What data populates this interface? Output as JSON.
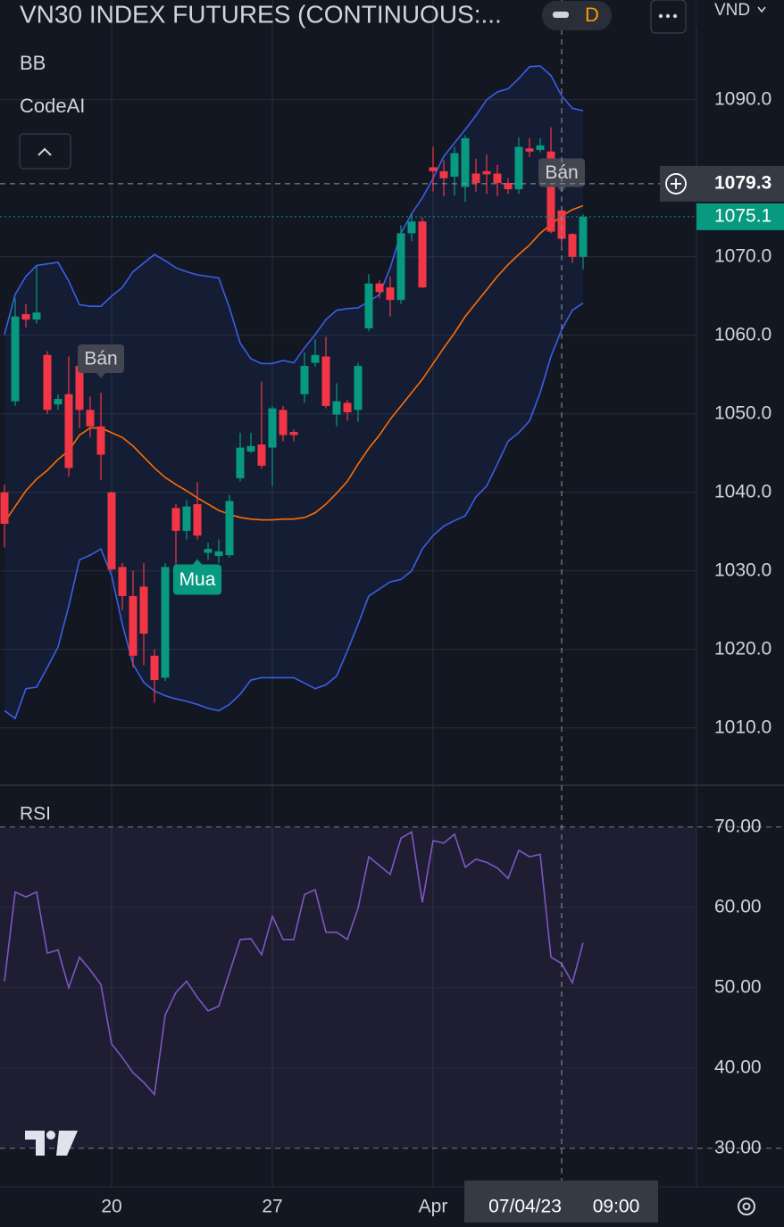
{
  "ui": {
    "title": "VN30 INDEX FUTURES (CONTINUOUS:...",
    "interval": "D",
    "currency": "VND",
    "indicators": [
      "BB",
      "CodeAI"
    ]
  },
  "chart_data": [
    {
      "type": "candlestick",
      "categories": [
        null,
        null,
        null,
        null,
        null,
        null,
        null,
        null,
        null,
        null,
        "20",
        null,
        null,
        null,
        null,
        null,
        null,
        null,
        null,
        null,
        null,
        null,
        null,
        null,
        null,
        "27",
        null,
        null,
        null,
        null,
        null,
        null,
        null,
        null,
        null,
        null,
        null,
        null,
        null,
        null,
        "Apr",
        null,
        null,
        null,
        null,
        null,
        null,
        null,
        null,
        null,
        null,
        null,
        null,
        null,
        null
      ],
      "open": [
        1040,
        1051.6,
        1062.7,
        1062,
        1057.5,
        1051.2,
        1052.5,
        1056.1,
        1050.5,
        1048.4,
        1040,
        1030.5,
        1026.8,
        1028,
        1019.2,
        1016.4,
        1038,
        1035.1,
        1038.5,
        1032.3,
        1031.9,
        1032,
        1041.8,
        1045.2,
        1046.1,
        1045.7,
        1050.5,
        1047.7,
        1052.5,
        1056.5,
        1057.3,
        1049.9,
        1051.4,
        1050.5,
        1060.9,
        1066.6,
        1066.1,
        1064.5,
        1073,
        1074.5,
        1081.4,
        1080.9,
        1080.2,
        1078.9,
        1080.6,
        1080.9,
        1080.6,
        1079.4,
        1078.6,
        1083.8,
        1083.6,
        1083.4,
        1075.9,
        1072.9,
        1070
      ],
      "high": [
        1041,
        1064.7,
        1064,
        1068.9,
        1058,
        1052.5,
        1057.3,
        1057.3,
        1052.2,
        1052.7,
        1040.1,
        1031,
        1030,
        1031,
        1020,
        1031,
        1038.5,
        1039,
        1041.3,
        1033.6,
        1034,
        1039.7,
        1047.6,
        1047.6,
        1054.1,
        1051,
        1051,
        1048,
        1057.8,
        1059.5,
        1059.8,
        1053.9,
        1051.8,
        1056.5,
        1067.8,
        1067,
        1067.5,
        1074,
        1075.5,
        1075,
        1084,
        1082.3,
        1084,
        1085.5,
        1082.5,
        1083,
        1081.7,
        1080,
        1085.2,
        1085.1,
        1085.1,
        1086.5,
        1076.4,
        1073,
        1075.4
      ],
      "low": [
        1033,
        1051,
        1061,
        1061.5,
        1050,
        1050.5,
        1042,
        1048.2,
        1047,
        1041.6,
        1030,
        1025,
        1017.7,
        1018,
        1013.2,
        1016,
        1030,
        1034,
        1034,
        1031.4,
        1031,
        1031.7,
        1041.4,
        1045,
        1043,
        1040.8,
        1046.5,
        1046.5,
        1051.4,
        1056,
        1050.7,
        1048.4,
        1049.1,
        1049,
        1060.5,
        1064.7,
        1062.4,
        1064,
        1072,
        1066,
        1078.3,
        1077.7,
        1077.8,
        1077,
        1078.3,
        1078,
        1077.7,
        1078,
        1078,
        1082.7,
        1083.3,
        1073,
        1071.5,
        1069.2,
        1068.4
      ],
      "close": [
        1036,
        1062.4,
        1062,
        1062.9,
        1050.5,
        1051.9,
        1043.1,
        1050.5,
        1048.4,
        1044.8,
        1030.2,
        1026.8,
        1019.2,
        1022,
        1016.1,
        1030.5,
        1035.1,
        1038.2,
        1034.5,
        1032.8,
        1032.5,
        1038.9,
        1045.7,
        1045.9,
        1043.4,
        1050.7,
        1047.3,
        1047.3,
        1056.1,
        1057.5,
        1051,
        1051.6,
        1050.2,
        1056.1,
        1066.6,
        1065.5,
        1064.5,
        1073,
        1074.5,
        1066.1,
        1080.9,
        1080,
        1083.2,
        1085.1,
        1079.4,
        1080.5,
        1079.4,
        1078.6,
        1084,
        1083.4,
        1084.2,
        1073.2,
        1072.3,
        1070,
        1075.1
      ],
      "up_color": "#089981",
      "down_color": "#f23645",
      "series": [
        {
          "color": "#3b5ee8",
          "values": [
            1060.1,
            1065.2,
            1067.5,
            1068.9,
            1069.1,
            1069.3,
            1066.9,
            1063.9,
            1063.7,
            1063.7,
            1065,
            1066.1,
            1068.1,
            1069.2,
            1070.3,
            1069.5,
            1068.6,
            1068.1,
            1067.7,
            1067.5,
            1067.3,
            1063.5,
            1059,
            1057,
            1056.4,
            1056.4,
            1056.8,
            1056.5,
            1058.4,
            1060.1,
            1062,
            1063.2,
            1063.4,
            1063.5,
            1064.3,
            1065.2,
            1068.6,
            1073,
            1075.5,
            1077.5,
            1080,
            1082.8,
            1084.5,
            1086.2,
            1088,
            1090,
            1091,
            1091.4,
            1092.7,
            1094.2,
            1094.3,
            1093.1,
            1090.5,
            1088.9,
            1088.6
          ]
        },
        {
          "color": "#ff6d00",
          "values": [
            1036.2,
            1038.2,
            1040.2,
            1041.7,
            1042.8,
            1044.2,
            1045.3,
            1047.3,
            1048.2,
            1048.2,
            1047.6,
            1047,
            1045.9,
            1044.5,
            1043.1,
            1041.9,
            1041,
            1040.2,
            1039.3,
            1038.5,
            1037.7,
            1037.2,
            1036.8,
            1036.6,
            1036.5,
            1036.5,
            1036.6,
            1036.6,
            1036.8,
            1037.4,
            1038.5,
            1039.9,
            1041.4,
            1043.6,
            1045.6,
            1047.3,
            1049.3,
            1051,
            1052.7,
            1054.4,
            1056.4,
            1058.4,
            1060.3,
            1062.4,
            1064.1,
            1065.8,
            1067.5,
            1069,
            1070.3,
            1071.5,
            1073,
            1074.1,
            1075.2,
            1076,
            1076.5
          ]
        },
        {
          "color": "#3b5ee8",
          "values": [
            1012.2,
            1011.2,
            1015,
            1015.2,
            1017.7,
            1020.3,
            1025.5,
            1031.4,
            1032,
            1032.8,
            1029.4,
            1023.2,
            1018.1,
            1015.8,
            1014.7,
            1014.1,
            1013.7,
            1013.4,
            1013,
            1012.5,
            1012.2,
            1013,
            1014.3,
            1016.1,
            1016.4,
            1016.4,
            1016.4,
            1016.4,
            1015.7,
            1015,
            1015.5,
            1016.6,
            1019.8,
            1023.2,
            1026.8,
            1027.7,
            1028.6,
            1028.9,
            1030,
            1032.8,
            1034.5,
            1035.7,
            1036.4,
            1037,
            1039.4,
            1040.8,
            1043.6,
            1046.5,
            1047.6,
            1049.1,
            1052.7,
            1057.3,
            1060.7,
            1063.2,
            1064.1
          ]
        }
      ],
      "band_fill": "rgba(41,98,255,0.08)",
      "ylim": [
        1002.7,
        1102.7
      ],
      "yticks": [
        {
          "value": 1010,
          "label": "1010.0"
        },
        {
          "value": 1020,
          "label": "1020.0"
        },
        {
          "value": 1030,
          "label": "1030.0"
        },
        {
          "value": 1040,
          "label": "1040.0"
        },
        {
          "value": 1050,
          "label": "1050.0"
        },
        {
          "value": 1060,
          "label": "1060.0"
        },
        {
          "value": 1070,
          "label": "1070.0"
        },
        {
          "value": 1090,
          "label": "1090.0"
        }
      ],
      "grid": true,
      "last_price": 1075.1,
      "signals": [
        {
          "label": "Bán",
          "index": 9,
          "side": "sell",
          "color": "#434651"
        },
        {
          "label": "Mua",
          "index": 18,
          "side": "buy",
          "color": "#089981"
        },
        {
          "label": "Bán",
          "index": 52,
          "side": "sell",
          "color": "#434651"
        }
      ],
      "crosshair": {
        "index": 52,
        "price": 1079.3,
        "date": "07/04/23",
        "time": "09:00"
      }
    },
    {
      "type": "line",
      "title": "RSI",
      "series": [
        {
          "color": "#7e57c2",
          "values": [
            50.8,
            61.9,
            61.3,
            61.9,
            54.3,
            54.7,
            50,
            53.8,
            52.2,
            50.4,
            43,
            41.3,
            39.4,
            38.2,
            36.7,
            46.6,
            49.4,
            50.8,
            48.8,
            47.1,
            47.7,
            51.9,
            56,
            56.1,
            54.1,
            58.9,
            56,
            56,
            61.6,
            62.2,
            56.9,
            56.9,
            56,
            59.9,
            66.3,
            65.2,
            64.1,
            68.6,
            69.4,
            60.6,
            68.3,
            68,
            69.1,
            65,
            66,
            65.6,
            64.9,
            63.6,
            67.1,
            66.3,
            66.6,
            53.8,
            53,
            50.6,
            55.6
          ]
        }
      ],
      "band": [
        30,
        70
      ],
      "band_fill": "rgba(126,87,194,0.1)",
      "ylim": [
        25.2,
        75.2
      ],
      "yticks": [
        {
          "value": 30,
          "label": "30.00"
        },
        {
          "value": 40,
          "label": "40.00"
        },
        {
          "value": 50,
          "label": "50.00"
        },
        {
          "value": 60,
          "label": "60.00"
        },
        {
          "value": 70,
          "label": "70.00"
        }
      ],
      "grid": true
    }
  ]
}
